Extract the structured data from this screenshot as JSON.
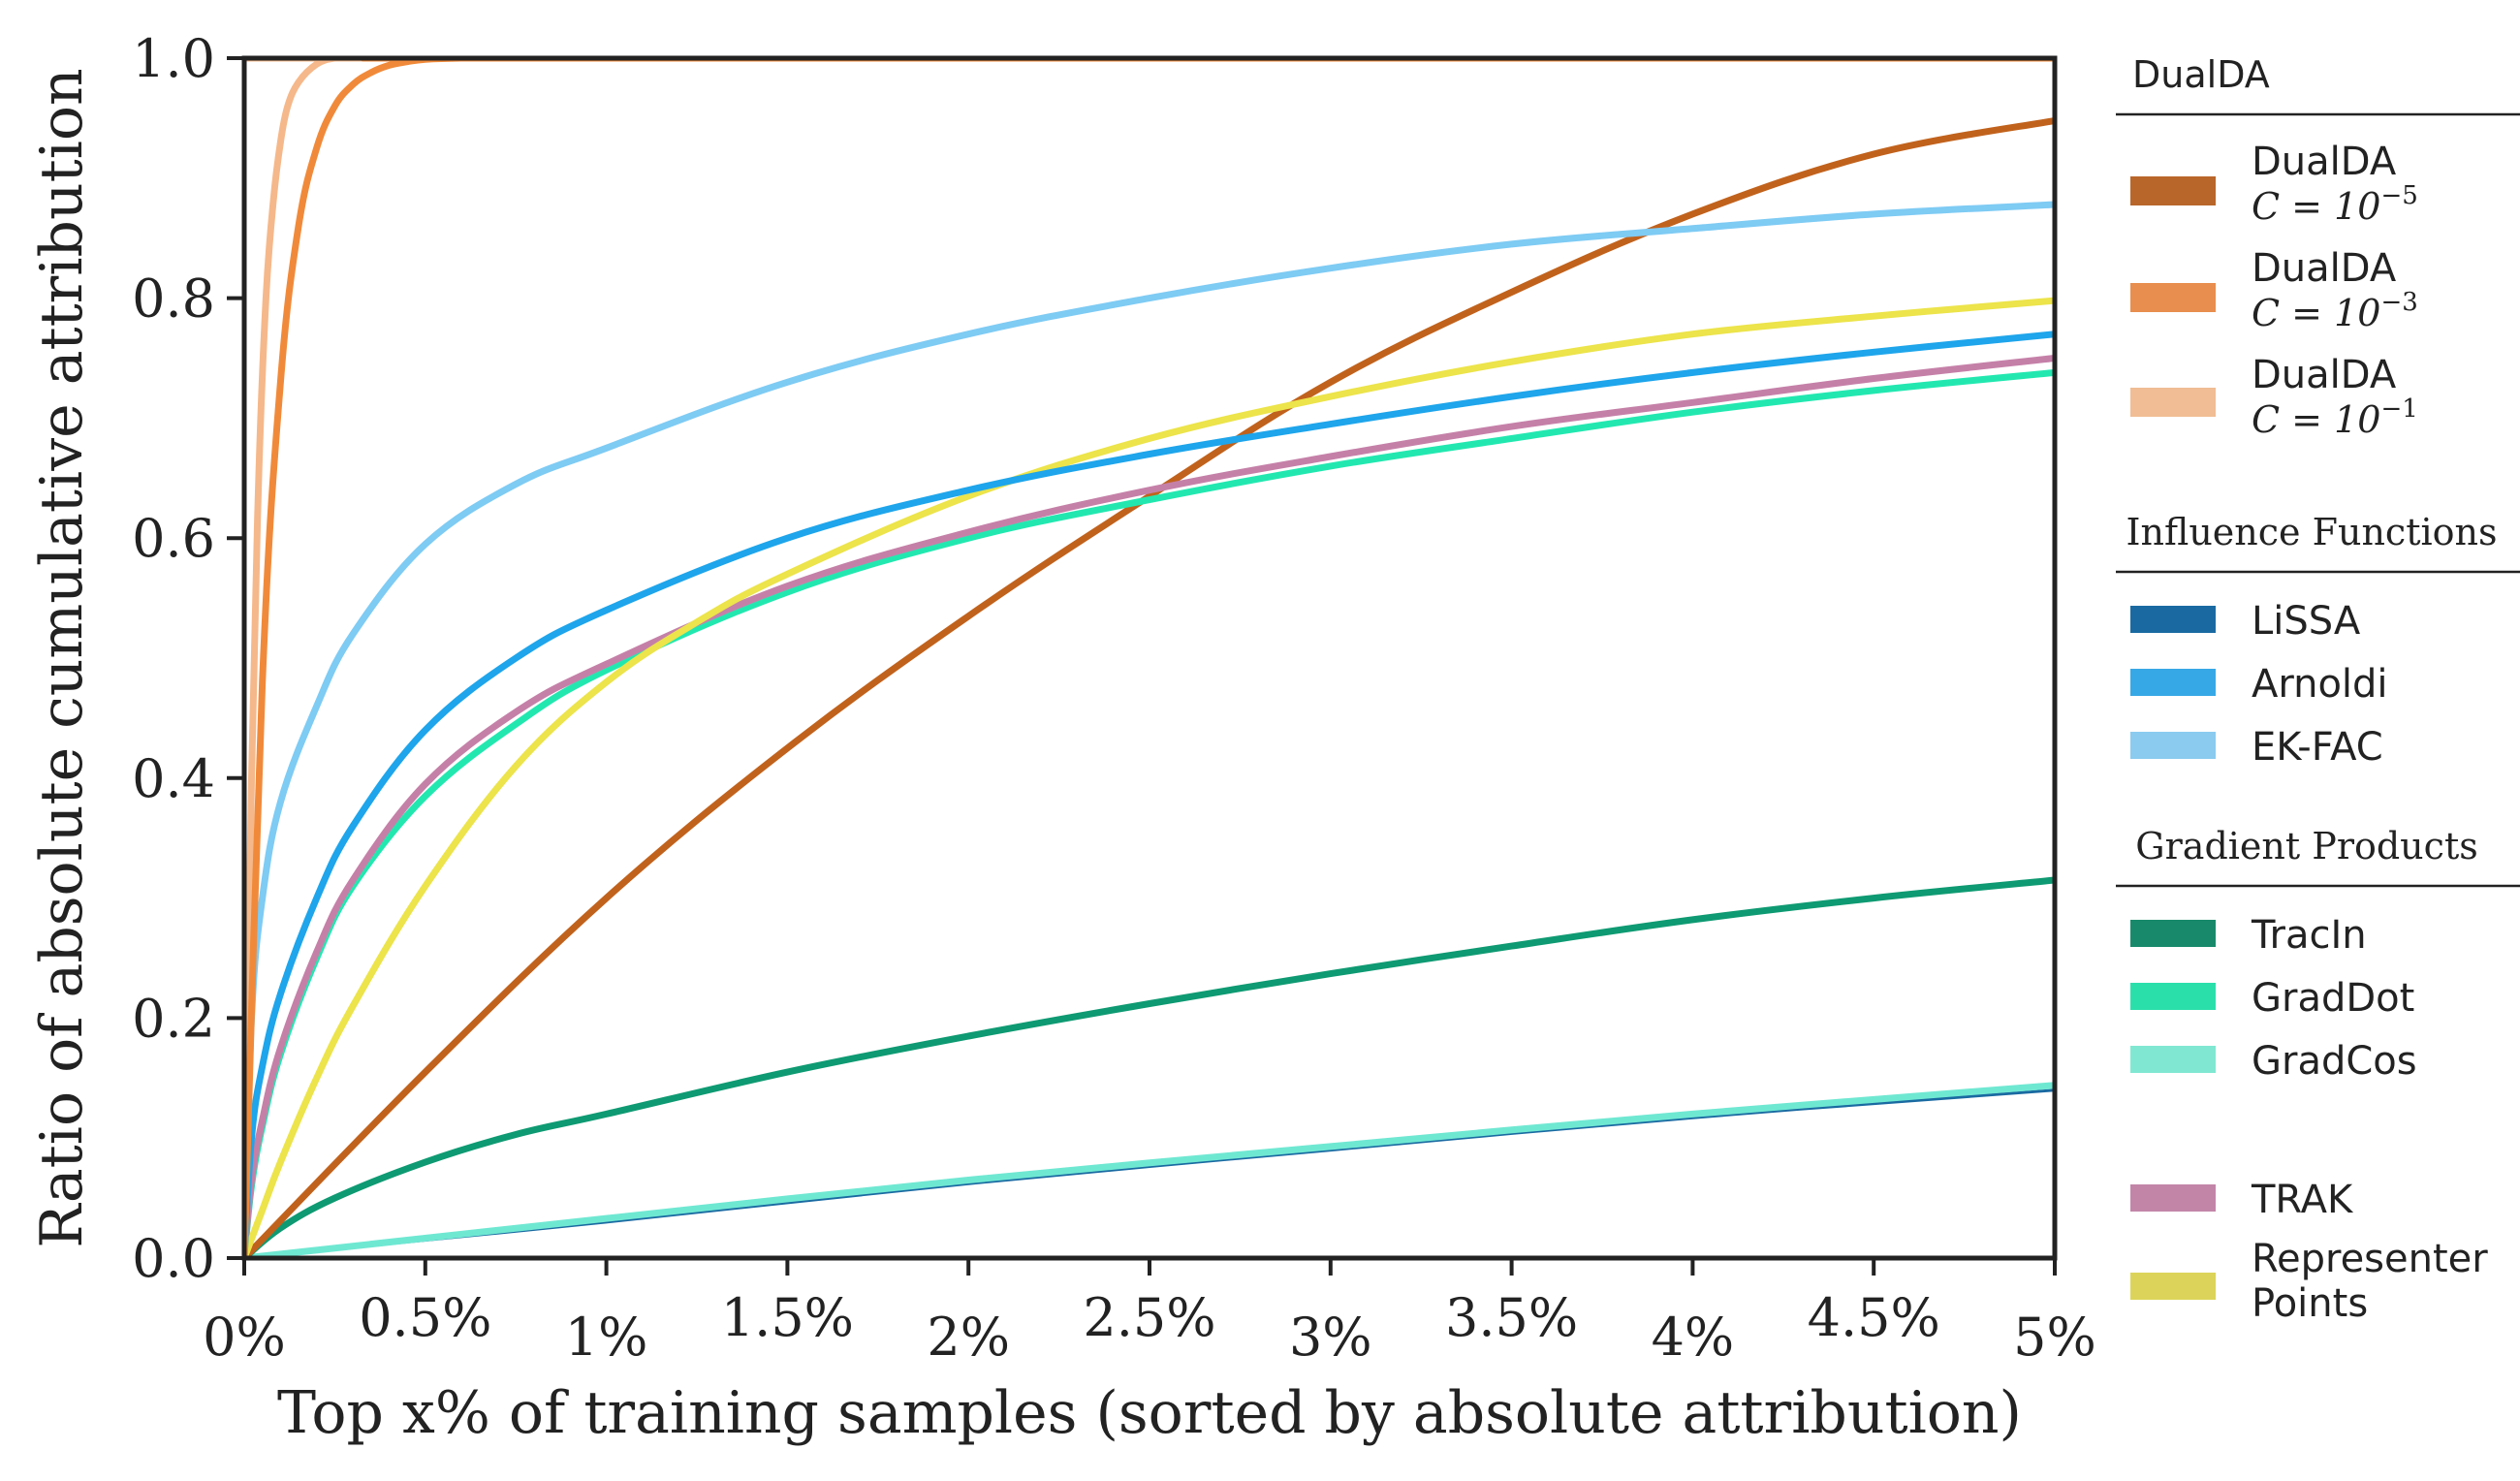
{
  "chart_data": {
    "type": "line",
    "title": "",
    "xlabel": "Top x% of training samples (sorted by absolute attribution)",
    "ylabel": "Ratio of absolute cumulative attribution",
    "xlim": [
      0,
      5
    ],
    "ylim": [
      0,
      1
    ],
    "xticks": [
      0,
      0.5,
      1,
      1.5,
      2,
      2.5,
      3,
      3.5,
      4,
      4.5,
      5
    ],
    "xtick_labels": [
      "0%",
      "0.5%",
      "1%",
      "1.5%",
      "2%",
      "2.5%",
      "3%",
      "3.5%",
      "4%",
      "4.5%",
      "5%"
    ],
    "yticks": [
      0,
      0.2,
      0.4,
      0.6,
      0.8,
      1.0
    ],
    "ytick_labels": [
      "0.0",
      "0.2",
      "0.4",
      "0.6",
      "0.8",
      "1.0"
    ],
    "grid": false,
    "legend_position": "right",
    "legend_groups": [
      {
        "title": "DualDA",
        "entries": [
          "dualda_1e5",
          "dualda_1e3",
          "dualda_1e1"
        ]
      },
      {
        "title": "Influence Functions",
        "entries": [
          "lissa",
          "arnoldi",
          "ekfac"
        ]
      },
      {
        "title": "Gradient Products",
        "entries": [
          "tracin",
          "graddot",
          "gradcos"
        ]
      },
      {
        "title": "",
        "entries": [
          "trak",
          "representer"
        ]
      }
    ],
    "series": [
      {
        "id": "dualda_1e5",
        "name": "DualDA",
        "sub": "C = 10^-5",
        "color": "#c1621c",
        "legend_color": "#b8662a",
        "x": [
          0,
          0.5,
          1,
          1.5,
          2,
          2.5,
          3,
          3.5,
          4,
          4.5,
          5
        ],
        "values": [
          0,
          0.155,
          0.3,
          0.425,
          0.535,
          0.635,
          0.73,
          0.805,
          0.87,
          0.92,
          0.948
        ]
      },
      {
        "id": "dualda_1e3",
        "name": "DualDA",
        "sub": "C = 10^-3",
        "color": "#f08a3a",
        "legend_color": "#e88e4e",
        "x": [
          0,
          0.05,
          0.1,
          0.15,
          0.2,
          0.25,
          0.3,
          0.35,
          0.4,
          0.45,
          0.5,
          0.6,
          0.7,
          5
        ],
        "values": [
          0,
          0.48,
          0.73,
          0.86,
          0.925,
          0.96,
          0.978,
          0.988,
          0.994,
          0.997,
          0.999,
          1.0,
          1.0,
          1.0
        ]
      },
      {
        "id": "dualda_1e1",
        "name": "DualDA",
        "sub": "C = 10^-1",
        "color": "#f5b88a",
        "legend_color": "#f0bd94",
        "x": [
          0,
          0.02,
          0.04,
          0.06,
          0.08,
          0.1,
          0.12,
          0.15,
          0.2,
          0.25,
          0.3,
          5
        ],
        "values": [
          0,
          0.4,
          0.65,
          0.8,
          0.88,
          0.93,
          0.96,
          0.98,
          0.995,
          1.0,
          1.0,
          1.0
        ]
      },
      {
        "id": "lissa",
        "name": "LiSSA",
        "color": "#1a6aa1",
        "legend_color": "#1a6aa1",
        "x": [
          0,
          1,
          2,
          3,
          4,
          5
        ],
        "values": [
          0,
          0.03,
          0.062,
          0.09,
          0.117,
          0.14
        ]
      },
      {
        "id": "arnoldi",
        "name": "Arnoldi",
        "color": "#1ea5eb",
        "legend_color": "#37a8e6",
        "x": [
          0,
          0.02,
          0.05,
          0.1,
          0.2,
          0.3,
          0.5,
          0.75,
          1,
          1.5,
          2,
          2.5,
          3,
          3.5,
          4,
          4.5,
          5
        ],
        "values": [
          0,
          0.1,
          0.16,
          0.22,
          0.3,
          0.36,
          0.44,
          0.5,
          0.54,
          0.6,
          0.64,
          0.67,
          0.695,
          0.718,
          0.738,
          0.755,
          0.77
        ]
      },
      {
        "id": "ekfac",
        "name": "EK-FAC",
        "color": "#7ecbf4",
        "legend_color": "#8acbef",
        "x": [
          0,
          0.02,
          0.05,
          0.1,
          0.2,
          0.3,
          0.5,
          0.75,
          1,
          1.5,
          2,
          2.5,
          3,
          3.5,
          4,
          4.5,
          5
        ],
        "values": [
          0,
          0.2,
          0.3,
          0.38,
          0.46,
          0.52,
          0.595,
          0.645,
          0.675,
          0.73,
          0.77,
          0.8,
          0.825,
          0.845,
          0.858,
          0.87,
          0.878
        ]
      },
      {
        "id": "tracin",
        "name": "TracIn",
        "color": "#0e9a72",
        "legend_color": "#188a6b",
        "x": [
          0,
          0.1,
          0.25,
          0.5,
          0.75,
          1,
          1.5,
          2,
          2.5,
          3,
          3.5,
          4,
          4.5,
          5
        ],
        "values": [
          0,
          0.025,
          0.05,
          0.08,
          0.103,
          0.12,
          0.155,
          0.185,
          0.212,
          0.237,
          0.26,
          0.282,
          0.3,
          0.315
        ]
      },
      {
        "id": "graddot",
        "name": "GradDot",
        "color": "#22e8b0",
        "legend_color": "#2bdfab",
        "x": [
          0,
          0.02,
          0.05,
          0.1,
          0.2,
          0.3,
          0.5,
          0.75,
          1,
          1.5,
          2,
          2.5,
          3,
          3.5,
          4,
          4.5,
          5
        ],
        "values": [
          0,
          0.06,
          0.11,
          0.17,
          0.25,
          0.31,
          0.385,
          0.445,
          0.49,
          0.555,
          0.6,
          0.632,
          0.66,
          0.683,
          0.705,
          0.723,
          0.738
        ]
      },
      {
        "id": "gradcos",
        "name": "GradCos",
        "color": "#6fe8d2",
        "legend_color": "#80e8d2",
        "x": [
          0,
          1,
          2,
          3,
          4,
          5
        ],
        "values": [
          0,
          0.033,
          0.065,
          0.093,
          0.12,
          0.144
        ]
      },
      {
        "id": "trak",
        "name": "TRAK",
        "color": "#c580a8",
        "legend_color": "#c285a8",
        "x": [
          0,
          0.02,
          0.05,
          0.1,
          0.2,
          0.3,
          0.5,
          0.75,
          1,
          1.5,
          2,
          2.5,
          3,
          3.5,
          4,
          4.5,
          5
        ],
        "values": [
          0,
          0.065,
          0.115,
          0.175,
          0.255,
          0.315,
          0.395,
          0.455,
          0.495,
          0.56,
          0.605,
          0.64,
          0.668,
          0.693,
          0.713,
          0.733,
          0.75
        ]
      },
      {
        "id": "representer",
        "name": "Representer Points",
        "color": "#ece44a",
        "legend_color": "#dcd45a",
        "x": [
          0,
          0.05,
          0.1,
          0.2,
          0.3,
          0.5,
          0.75,
          1,
          1.25,
          1.5,
          2,
          2.5,
          3,
          3.5,
          4,
          4.5,
          5
        ],
        "values": [
          0,
          0.04,
          0.08,
          0.15,
          0.21,
          0.31,
          0.41,
          0.48,
          0.53,
          0.57,
          0.635,
          0.683,
          0.718,
          0.747,
          0.77,
          0.785,
          0.798
        ]
      }
    ]
  }
}
